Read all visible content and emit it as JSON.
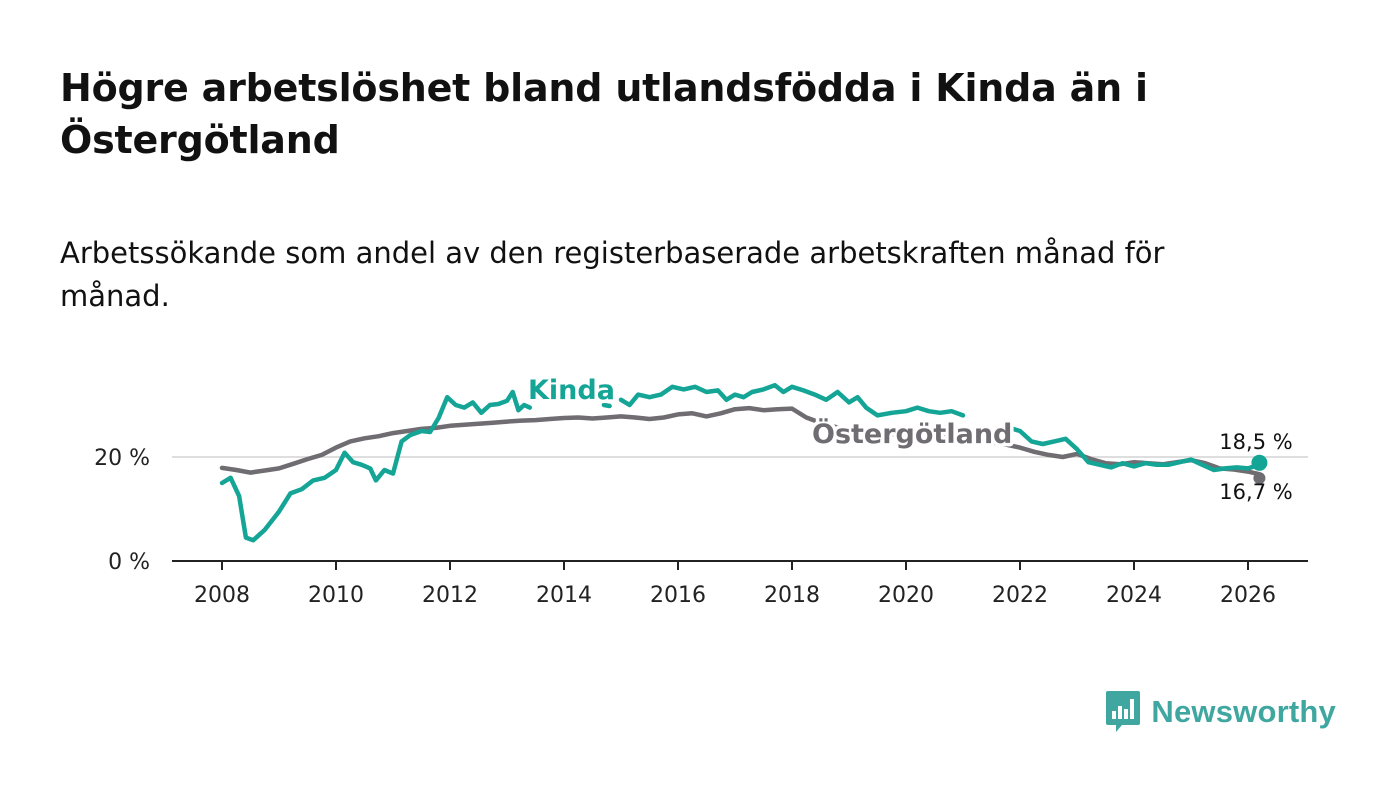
{
  "title": "Högre arbetslöshet bland utlandsfödda i Kinda än i Östergötland",
  "subtitle": "Arbetssökande som andel av den registerbaserade arbetskraften månad för månad.",
  "brand": {
    "name": "Newsworthy",
    "icon": "newsworthy-logo-icon",
    "color": "#3fa7a0"
  },
  "chart_data": {
    "type": "line",
    "x_axis": {
      "range": [
        2007.5,
        2027.0
      ],
      "ticks": [
        2008,
        2010,
        2012,
        2014,
        2016,
        2018,
        2020,
        2022,
        2024,
        2026
      ],
      "tick_labels": [
        "2008",
        "2010",
        "2012",
        "2014",
        "2016",
        "2018",
        "2020",
        "2022",
        "2024",
        "2026"
      ]
    },
    "y_axis": {
      "range": [
        0,
        40
      ],
      "ticks": [
        0,
        20
      ],
      "tick_labels": [
        "0 %",
        "20 %"
      ],
      "grid": true
    },
    "series": [
      {
        "name": "Östergötland",
        "label": "Östergötland",
        "color": "#6f6c72",
        "end_label": "16,7 %",
        "end_value": 16.7,
        "points": [
          [
            2008.0,
            17.9
          ],
          [
            2008.25,
            17.5
          ],
          [
            2008.5,
            17.0
          ],
          [
            2008.75,
            17.4
          ],
          [
            2009.0,
            17.8
          ],
          [
            2009.25,
            18.7
          ],
          [
            2009.5,
            19.6
          ],
          [
            2009.75,
            20.4
          ],
          [
            2010.0,
            21.8
          ],
          [
            2010.25,
            23.0
          ],
          [
            2010.5,
            23.6
          ],
          [
            2010.75,
            24.0
          ],
          [
            2011.0,
            24.6
          ],
          [
            2011.25,
            25.0
          ],
          [
            2011.5,
            25.4
          ],
          [
            2011.75,
            25.6
          ],
          [
            2012.0,
            26.0
          ],
          [
            2012.25,
            26.2
          ],
          [
            2012.5,
            26.4
          ],
          [
            2012.75,
            26.6
          ],
          [
            2013.0,
            26.8
          ],
          [
            2013.25,
            27.0
          ],
          [
            2013.5,
            27.1
          ],
          [
            2013.75,
            27.3
          ],
          [
            2014.0,
            27.5
          ],
          [
            2014.25,
            27.6
          ],
          [
            2014.5,
            27.4
          ],
          [
            2014.75,
            27.6
          ],
          [
            2015.0,
            27.8
          ],
          [
            2015.25,
            27.6
          ],
          [
            2015.5,
            27.3
          ],
          [
            2015.75,
            27.6
          ],
          [
            2016.0,
            28.2
          ],
          [
            2016.25,
            28.4
          ],
          [
            2016.5,
            27.8
          ],
          [
            2016.75,
            28.4
          ],
          [
            2017.0,
            29.2
          ],
          [
            2017.25,
            29.4
          ],
          [
            2017.5,
            29.0
          ],
          [
            2017.75,
            29.2
          ],
          [
            2018.0,
            29.3
          ],
          [
            2018.25,
            27.6
          ],
          [
            2018.5,
            26.6
          ],
          [
            2018.75,
            25.8
          ],
          [
            2019.0,
            25.0
          ],
          [
            2019.25,
            24.6
          ],
          [
            2019.5,
            24.2
          ],
          [
            2019.75,
            24.4
          ],
          [
            2020.0,
            23.8
          ],
          [
            2020.25,
            24.4
          ],
          [
            2020.5,
            24.6
          ],
          [
            2020.75,
            24.2
          ],
          [
            2021.0,
            23.6
          ],
          [
            2021.25,
            23.4
          ],
          [
            2021.5,
            22.8
          ],
          [
            2021.75,
            22.4
          ],
          [
            2022.0,
            21.8
          ],
          [
            2022.25,
            21.0
          ],
          [
            2022.5,
            20.4
          ],
          [
            2022.75,
            20.0
          ],
          [
            2023.0,
            20.6
          ],
          [
            2023.25,
            19.6
          ],
          [
            2023.5,
            18.8
          ],
          [
            2023.75,
            18.6
          ],
          [
            2024.0,
            19.0
          ],
          [
            2024.25,
            18.8
          ],
          [
            2024.5,
            18.6
          ],
          [
            2024.75,
            19.0
          ],
          [
            2025.0,
            19.4
          ],
          [
            2025.25,
            18.8
          ],
          [
            2025.5,
            17.8
          ],
          [
            2025.75,
            17.6
          ],
          [
            2026.0,
            17.2
          ],
          [
            2026.2,
            16.7
          ]
        ]
      },
      {
        "name": "Kinda",
        "label": "Kinda",
        "color": "#14a596",
        "end_label": "18,5 %",
        "end_value": 18.5,
        "points": [
          [
            2008.0,
            15.0
          ],
          [
            2008.15,
            16.0
          ],
          [
            2008.3,
            12.5
          ],
          [
            2008.42,
            4.5
          ],
          [
            2008.55,
            4.0
          ],
          [
            2008.75,
            6.0
          ],
          [
            2009.0,
            9.5
          ],
          [
            2009.2,
            13.0
          ],
          [
            2009.4,
            13.8
          ],
          [
            2009.6,
            15.5
          ],
          [
            2009.8,
            16.0
          ],
          [
            2010.0,
            17.5
          ],
          [
            2010.15,
            20.8
          ],
          [
            2010.3,
            19.0
          ],
          [
            2010.45,
            18.5
          ],
          [
            2010.6,
            17.8
          ],
          [
            2010.7,
            15.5
          ],
          [
            2010.85,
            17.5
          ],
          [
            2011.0,
            16.8
          ],
          [
            2011.15,
            23.0
          ],
          [
            2011.3,
            24.2
          ],
          [
            2011.5,
            25.0
          ],
          [
            2011.65,
            24.8
          ],
          [
            2011.8,
            27.5
          ],
          [
            2011.95,
            31.5
          ],
          [
            2012.1,
            30.0
          ],
          [
            2012.25,
            29.5
          ],
          [
            2012.4,
            30.5
          ],
          [
            2012.55,
            28.5
          ],
          [
            2012.7,
            30.0
          ],
          [
            2012.85,
            30.2
          ],
          [
            2013.0,
            30.8
          ],
          [
            2013.1,
            32.5
          ],
          [
            2013.2,
            29.0
          ],
          [
            2013.3,
            30.0
          ],
          [
            2013.4,
            29.5
          ],
          null,
          [
            2014.7,
            30.0
          ],
          [
            2014.8,
            29.8
          ],
          null,
          [
            2015.0,
            31.0
          ],
          [
            2015.15,
            30.0
          ],
          [
            2015.3,
            32.0
          ],
          [
            2015.5,
            31.5
          ],
          [
            2015.7,
            32.0
          ],
          [
            2015.9,
            33.5
          ],
          [
            2016.1,
            33.0
          ],
          [
            2016.3,
            33.5
          ],
          [
            2016.5,
            32.5
          ],
          [
            2016.7,
            32.8
          ],
          [
            2016.85,
            31.0
          ],
          [
            2017.0,
            32.0
          ],
          [
            2017.15,
            31.5
          ],
          [
            2017.3,
            32.5
          ],
          [
            2017.5,
            33.0
          ],
          [
            2017.7,
            33.8
          ],
          [
            2017.85,
            32.5
          ],
          [
            2018.0,
            33.5
          ],
          [
            2018.2,
            32.8
          ],
          [
            2018.4,
            32.0
          ],
          [
            2018.6,
            31.0
          ],
          [
            2018.8,
            32.5
          ],
          [
            2019.0,
            30.5
          ],
          [
            2019.15,
            31.5
          ],
          [
            2019.3,
            29.5
          ],
          [
            2019.5,
            28.0
          ],
          [
            2019.75,
            28.5
          ],
          [
            2020.0,
            28.8
          ],
          [
            2020.2,
            29.5
          ],
          [
            2020.4,
            28.8
          ],
          [
            2020.6,
            28.5
          ],
          [
            2020.8,
            28.8
          ],
          [
            2021.0,
            28.0
          ],
          null,
          [
            2021.85,
            25.5
          ],
          [
            2022.0,
            25.0
          ],
          [
            2022.2,
            23.0
          ],
          [
            2022.4,
            22.5
          ],
          [
            2022.6,
            23.0
          ],
          [
            2022.8,
            23.5
          ],
          [
            2023.0,
            21.5
          ],
          [
            2023.2,
            19.0
          ],
          [
            2023.4,
            18.5
          ],
          [
            2023.6,
            18.0
          ],
          [
            2023.8,
            18.8
          ],
          [
            2024.0,
            18.2
          ],
          [
            2024.2,
            18.8
          ],
          [
            2024.4,
            18.5
          ],
          [
            2024.6,
            18.5
          ],
          [
            2024.8,
            19.0
          ],
          [
            2025.0,
            19.5
          ],
          [
            2025.2,
            18.5
          ],
          [
            2025.4,
            17.5
          ],
          [
            2025.6,
            17.8
          ],
          [
            2025.8,
            18.0
          ],
          [
            2026.0,
            17.8
          ],
          [
            2026.2,
            18.5
          ]
        ]
      }
    ]
  }
}
